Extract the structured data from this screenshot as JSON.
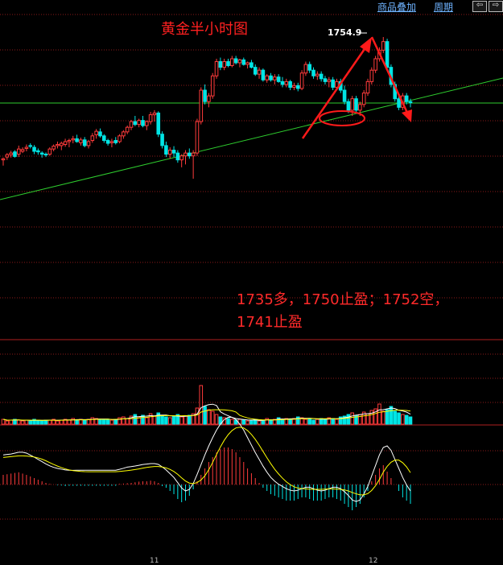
{
  "toolbar": {
    "overlay_label": "商品叠加",
    "period_label": "周期"
  },
  "chart_data": {
    "type": "candlestick",
    "title": "黄金半小时图",
    "peak_label": "1754.9",
    "annotation_lines": [
      "1735多，1750止盈；1752空，",
      "1741止盈"
    ],
    "x_tick_labels": [
      "11",
      "12"
    ],
    "colors": {
      "up": "#ff3b3b",
      "down": "#00e5e5",
      "trendline": "#2ecc2e",
      "arrow": "#ff1a1a",
      "ma_yellow": "#ffff00",
      "ma_white": "#ffffff",
      "grid": "#8b1a1a"
    },
    "candles": [
      [
        1733.4,
        1733.8,
        1732.4,
        1733.6
      ],
      [
        1733.9,
        1734.6,
        1733.4,
        1734.3
      ],
      [
        1734.3,
        1735.0,
        1733.8,
        1734.6
      ],
      [
        1734.8,
        1735.1,
        1733.8,
        1734.0
      ],
      [
        1734.4,
        1735.9,
        1733.9,
        1735.3
      ],
      [
        1734.9,
        1735.6,
        1734.6,
        1735.2
      ],
      [
        1735.4,
        1736.1,
        1734.9,
        1735.6
      ],
      [
        1735.9,
        1736.3,
        1735.4,
        1735.8
      ],
      [
        1735.6,
        1736.0,
        1734.4,
        1734.9
      ],
      [
        1735.0,
        1735.4,
        1734.3,
        1734.8
      ],
      [
        1734.6,
        1734.9,
        1733.8,
        1734.4
      ],
      [
        1734.4,
        1734.7,
        1733.9,
        1734.3
      ],
      [
        1734.4,
        1735.6,
        1734.1,
        1735.3
      ],
      [
        1735.3,
        1736.1,
        1734.9,
        1735.8
      ],
      [
        1735.9,
        1736.6,
        1735.4,
        1736.1
      ],
      [
        1735.9,
        1736.6,
        1735.1,
        1736.3
      ],
      [
        1736.1,
        1737.1,
        1735.7,
        1736.6
      ],
      [
        1736.6,
        1737.1,
        1735.6,
        1736.8
      ],
      [
        1736.9,
        1737.6,
        1736.3,
        1737.1
      ],
      [
        1737.1,
        1737.8,
        1736.4,
        1736.6
      ],
      [
        1736.4,
        1737.3,
        1735.9,
        1736.9
      ],
      [
        1736.9,
        1737.4,
        1735.6,
        1735.9
      ],
      [
        1735.9,
        1736.9,
        1735.4,
        1736.6
      ],
      [
        1736.8,
        1738.1,
        1736.4,
        1737.6
      ],
      [
        1737.8,
        1738.8,
        1737.1,
        1738.4
      ],
      [
        1738.3,
        1738.9,
        1737.3,
        1737.6
      ],
      [
        1737.6,
        1737.9,
        1736.4,
        1736.8
      ],
      [
        1736.8,
        1737.1,
        1735.9,
        1736.3
      ],
      [
        1736.4,
        1737.1,
        1735.6,
        1736.6
      ],
      [
        1736.8,
        1737.4,
        1736.1,
        1736.4
      ],
      [
        1736.6,
        1737.9,
        1736.3,
        1737.6
      ],
      [
        1737.6,
        1738.6,
        1737.1,
        1738.3
      ],
      [
        1738.3,
        1739.4,
        1737.9,
        1739.1
      ],
      [
        1739.1,
        1740.4,
        1738.6,
        1740.1
      ],
      [
        1740.1,
        1741.1,
        1739.3,
        1739.6
      ],
      [
        1739.6,
        1740.6,
        1739.1,
        1740.3
      ],
      [
        1740.3,
        1741.1,
        1739.1,
        1739.4
      ],
      [
        1739.4,
        1740.3,
        1738.6,
        1740.1
      ],
      [
        1740.1,
        1741.8,
        1739.6,
        1741.3
      ],
      [
        1741.3,
        1742.1,
        1740.1,
        1741.6
      ],
      [
        1741.6,
        1741.9,
        1737.4,
        1737.9
      ],
      [
        1737.9,
        1738.4,
        1735.4,
        1735.9
      ],
      [
        1735.9,
        1736.6,
        1733.9,
        1734.4
      ],
      [
        1734.4,
        1735.6,
        1733.6,
        1735.1
      ],
      [
        1735.1,
        1735.8,
        1733.9,
        1734.6
      ],
      [
        1734.6,
        1735.1,
        1732.9,
        1733.4
      ],
      [
        1733.4,
        1734.4,
        1732.1,
        1734.1
      ],
      [
        1734.1,
        1735.1,
        1732.6,
        1734.6
      ],
      [
        1734.6,
        1735.4,
        1733.6,
        1734.1
      ],
      [
        1734.1,
        1735.1,
        1730.1,
        1734.6
      ],
      [
        1734.6,
        1740.6,
        1734.1,
        1740.1
      ],
      [
        1740.1,
        1746.1,
        1739.6,
        1745.6
      ],
      [
        1745.6,
        1746.6,
        1743.1,
        1743.6
      ],
      [
        1743.6,
        1745.1,
        1742.6,
        1744.6
      ],
      [
        1744.6,
        1748.6,
        1744.1,
        1748.1
      ],
      [
        1748.1,
        1751.1,
        1747.6,
        1750.6
      ],
      [
        1750.6,
        1751.3,
        1749.1,
        1749.6
      ],
      [
        1749.6,
        1751.1,
        1749.1,
        1750.6
      ],
      [
        1750.6,
        1751.1,
        1749.6,
        1749.9
      ],
      [
        1749.9,
        1751.6,
        1749.6,
        1751.1
      ],
      [
        1751.1,
        1751.6,
        1750.1,
        1750.4
      ],
      [
        1750.4,
        1751.1,
        1749.6,
        1750.9
      ],
      [
        1750.9,
        1751.3,
        1749.9,
        1750.1
      ],
      [
        1750.1,
        1750.6,
        1749.4,
        1750.4
      ],
      [
        1750.4,
        1750.9,
        1749.4,
        1749.6
      ],
      [
        1749.6,
        1750.1,
        1748.1,
        1748.4
      ],
      [
        1748.4,
        1749.6,
        1747.6,
        1749.1
      ],
      [
        1749.1,
        1749.4,
        1747.1,
        1747.4
      ],
      [
        1747.4,
        1748.4,
        1746.9,
        1748.1
      ],
      [
        1748.1,
        1748.6,
        1747.1,
        1747.4
      ],
      [
        1747.4,
        1748.4,
        1746.6,
        1747.9
      ],
      [
        1747.9,
        1748.4,
        1746.9,
        1747.1
      ],
      [
        1747.1,
        1747.9,
        1746.1,
        1746.6
      ],
      [
        1746.6,
        1747.6,
        1746.1,
        1747.1
      ],
      [
        1747.1,
        1747.4,
        1745.6,
        1746.1
      ],
      [
        1746.1,
        1746.9,
        1745.6,
        1746.4
      ],
      [
        1746.4,
        1746.9,
        1745.4,
        1745.9
      ],
      [
        1745.9,
        1749.1,
        1745.6,
        1748.6
      ],
      [
        1748.6,
        1750.6,
        1748.1,
        1750.1
      ],
      [
        1750.1,
        1750.6,
        1748.6,
        1749.1
      ],
      [
        1749.1,
        1749.6,
        1747.6,
        1748.1
      ],
      [
        1748.1,
        1748.9,
        1747.4,
        1748.4
      ],
      [
        1748.4,
        1748.9,
        1747.1,
        1747.6
      ],
      [
        1747.6,
        1748.1,
        1746.6,
        1747.1
      ],
      [
        1747.1,
        1747.9,
        1746.1,
        1747.4
      ],
      [
        1747.4,
        1747.9,
        1745.6,
        1746.1
      ],
      [
        1746.1,
        1747.6,
        1745.6,
        1747.1
      ],
      [
        1747.1,
        1747.6,
        1745.1,
        1745.6
      ],
      [
        1745.6,
        1746.4,
        1743.1,
        1743.6
      ],
      [
        1743.6,
        1744.1,
        1741.6,
        1742.1
      ],
      [
        1742.1,
        1744.6,
        1741.1,
        1744.1
      ],
      [
        1744.1,
        1744.6,
        1741.6,
        1742.1
      ],
      [
        1742.1,
        1743.6,
        1741.1,
        1743.1
      ],
      [
        1743.1,
        1745.6,
        1742.6,
        1745.1
      ],
      [
        1745.1,
        1747.6,
        1744.6,
        1747.1
      ],
      [
        1747.1,
        1749.6,
        1746.6,
        1749.1
      ],
      [
        1749.1,
        1751.6,
        1748.6,
        1751.1
      ],
      [
        1751.1,
        1753.1,
        1750.6,
        1752.6
      ],
      [
        1752.6,
        1754.9,
        1752.1,
        1754.1
      ],
      [
        1754.1,
        1754.6,
        1749.1,
        1749.6
      ],
      [
        1749.6,
        1750.1,
        1746.1,
        1746.6
      ],
      [
        1746.6,
        1747.1,
        1743.6,
        1744.1
      ],
      [
        1744.1,
        1744.9,
        1742.1,
        1742.6
      ],
      [
        1742.6,
        1745.1,
        1742.1,
        1744.6
      ],
      [
        1744.6,
        1745.1,
        1743.1,
        1743.6
      ],
      [
        1743.6,
        1744.1,
        1742.6,
        1743.4
      ]
    ],
    "volume": [
      0.6,
      0.4,
      0.5,
      0.6,
      0.5,
      0.4,
      0.5,
      0.4,
      0.6,
      0.5,
      0.4,
      0.5,
      0.5,
      0.6,
      0.4,
      0.5,
      0.6,
      0.5,
      0.7,
      0.5,
      0.6,
      0.5,
      0.6,
      0.8,
      0.7,
      0.6,
      0.5,
      0.6,
      0.5,
      0.6,
      0.8,
      0.9,
      0.7,
      1.0,
      1.2,
      0.9,
      1.1,
      0.8,
      1.3,
      1.0,
      1.4,
      1.1,
      0.9,
      0.8,
      1.0,
      1.2,
      0.9,
      1.0,
      1.1,
      1.3,
      2.0,
      4.8,
      2.2,
      1.8,
      1.6,
      1.2,
      0.9,
      0.8,
      0.7,
      0.6,
      0.5,
      0.6,
      0.5,
      0.4,
      0.5,
      0.6,
      0.4,
      0.5,
      0.7,
      0.5,
      0.6,
      0.8,
      0.6,
      0.7,
      0.6,
      0.7,
      0.9,
      0.8,
      0.6,
      0.7,
      0.5,
      0.6,
      0.7,
      0.6,
      0.8,
      0.7,
      0.6,
      0.9,
      1.0,
      1.2,
      1.4,
      1.1,
      1.2,
      1.5,
      1.3,
      1.7,
      1.9,
      2.5,
      1.6,
      1.8,
      2.2,
      1.6,
      1.4,
      1.2,
      1.1,
      0.9
    ],
    "macd_hist": [
      0.3,
      0.32,
      0.34,
      0.36,
      0.38,
      0.34,
      0.3,
      0.25,
      0.2,
      0.15,
      0.1,
      0.05,
      0.02,
      0.0,
      -0.02,
      -0.03,
      -0.05,
      -0.04,
      -0.04,
      -0.04,
      -0.04,
      -0.04,
      -0.04,
      -0.04,
      -0.04,
      -0.04,
      -0.04,
      -0.04,
      -0.04,
      -0.04,
      0.02,
      0.03,
      0.04,
      0.05,
      0.07,
      0.09,
      0.1,
      0.1,
      0.12,
      0.1,
      0.05,
      -0.05,
      -0.1,
      -0.2,
      -0.3,
      -0.45,
      -0.55,
      -0.5,
      -0.35,
      -0.15,
      0.1,
      0.3,
      0.5,
      0.7,
      0.85,
      1.0,
      1.1,
      1.15,
      1.15,
      1.1,
      1.0,
      0.85,
      0.7,
      0.5,
      0.35,
      0.2,
      0.05,
      -0.1,
      -0.2,
      -0.3,
      -0.35,
      -0.4,
      -0.45,
      -0.5,
      -0.5,
      -0.5,
      -0.45,
      -0.4,
      -0.4,
      -0.45,
      -0.5,
      -0.5,
      -0.5,
      -0.45,
      -0.4,
      -0.4,
      -0.45,
      -0.5,
      -0.6,
      -0.7,
      -0.8,
      -0.7,
      -0.6,
      -0.4,
      -0.2,
      0.1,
      0.3,
      0.5,
      0.6,
      0.4,
      0.2,
      0.0,
      -0.2,
      -0.4,
      -0.5,
      -0.6
    ]
  }
}
